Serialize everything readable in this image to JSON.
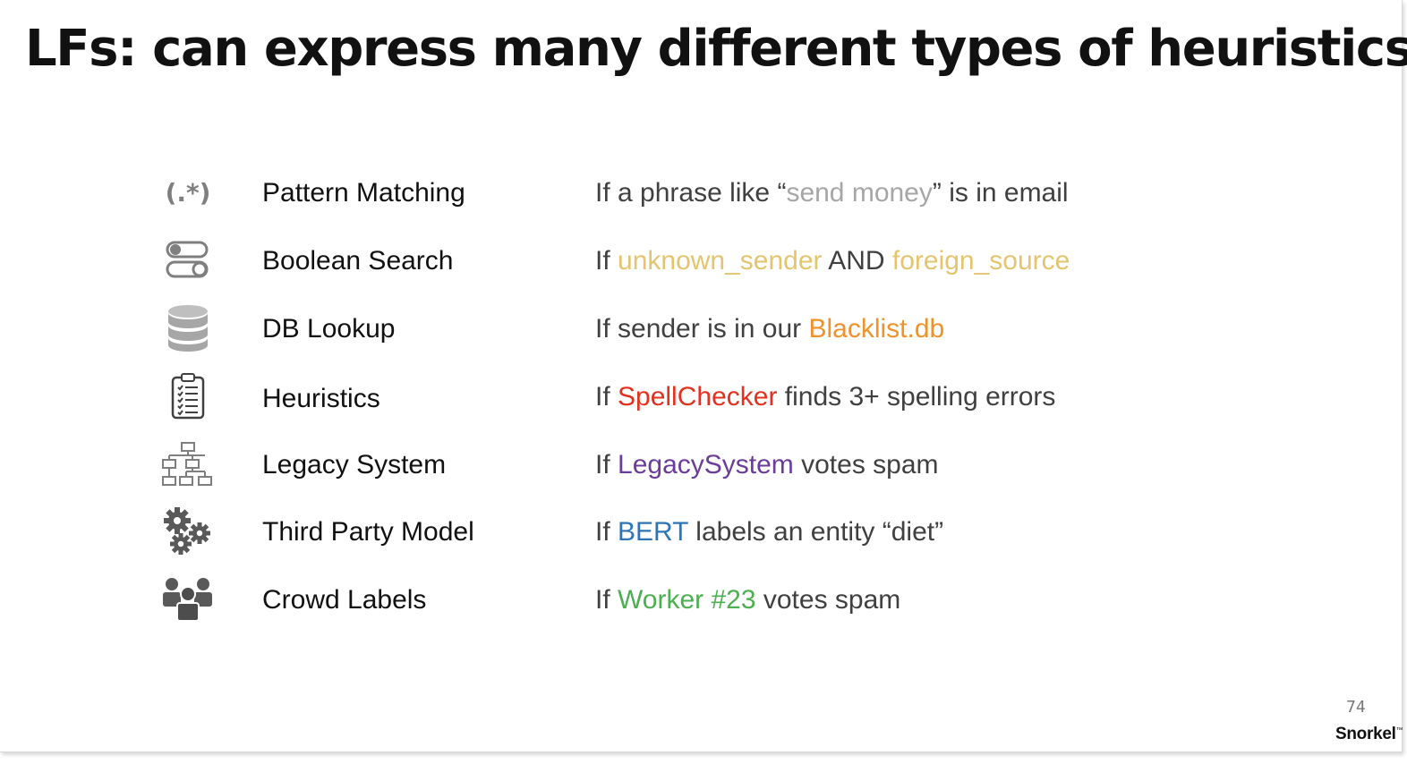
{
  "slide": {
    "title": "LFs: can express many different types of heuristics",
    "page_number": "74",
    "logo_text": "Snorkel"
  },
  "rows": [
    {
      "icon": "regex-icon",
      "icon_text": "(.*)",
      "label": "Pattern Matching",
      "parts": [
        {
          "text": "If a phrase like “",
          "color": "#404040"
        },
        {
          "text": "send money",
          "color": "#a6a6a6"
        },
        {
          "text": "” is in email",
          "color": "#404040"
        }
      ]
    },
    {
      "icon": "toggle-switches-icon",
      "label": "Boolean Search",
      "parts": [
        {
          "text": "If ",
          "color": "#404040"
        },
        {
          "text": "unknown_sender",
          "color": "#e5c46f"
        },
        {
          "text": " AND ",
          "color": "#404040"
        },
        {
          "text": "foreign_source",
          "color": "#e5c46f"
        }
      ]
    },
    {
      "icon": "database-icon",
      "label": "DB Lookup",
      "parts": [
        {
          "text": "If sender is in our ",
          "color": "#404040"
        },
        {
          "text": "Blacklist.db",
          "color": "#f0922b"
        }
      ]
    },
    {
      "icon": "clipboard-checklist-icon",
      "label": "Heuristics",
      "parts": [
        {
          "text": "If ",
          "color": "#404040"
        },
        {
          "text": "SpellChecker",
          "color": "#e3311e"
        },
        {
          "text": " finds 3+ spelling errors",
          "color": "#404040"
        }
      ]
    },
    {
      "icon": "hierarchy-chart-icon",
      "label": "Legacy System",
      "parts": [
        {
          "text": "If ",
          "color": "#404040"
        },
        {
          "text": "LegacySystem",
          "color": "#6a3d9a"
        },
        {
          "text": " votes spam",
          "color": "#404040"
        }
      ]
    },
    {
      "icon": "gears-icon",
      "label": "Third Party Model",
      "parts": [
        {
          "text": "If ",
          "color": "#404040"
        },
        {
          "text": "BERT",
          "color": "#2e75b6"
        },
        {
          "text": " labels an entity “diet”",
          "color": "#404040"
        }
      ]
    },
    {
      "icon": "crowd-people-icon",
      "label": "Crowd Labels",
      "parts": [
        {
          "text": "If ",
          "color": "#404040"
        },
        {
          "text": "Worker #23",
          "color": "#4caf50"
        },
        {
          "text": " votes spam",
          "color": "#404040"
        }
      ]
    }
  ]
}
